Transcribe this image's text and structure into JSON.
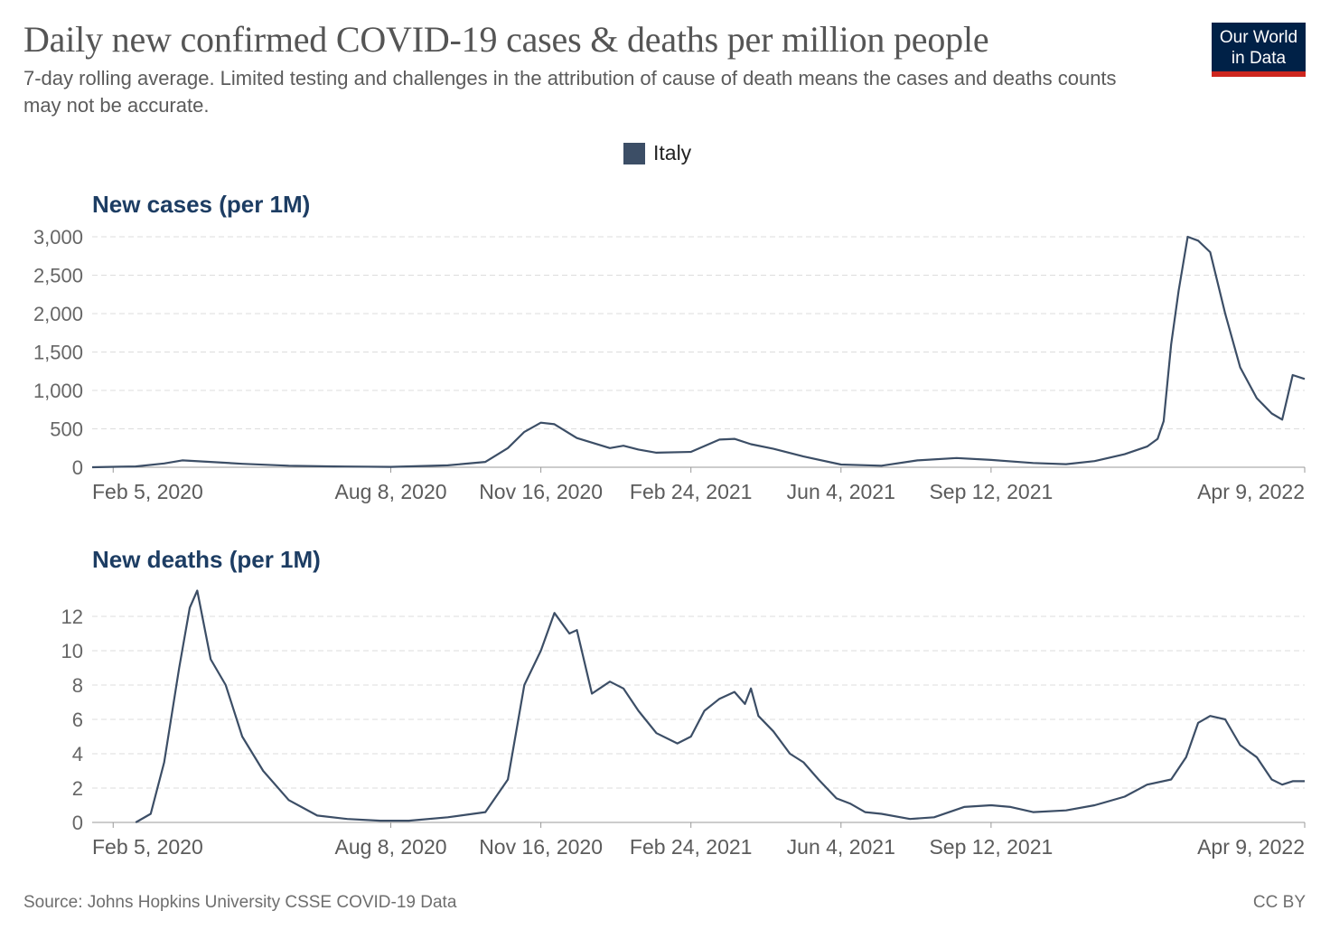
{
  "title": "Daily new confirmed COVID-19 cases & deaths per million people",
  "subtitle": "7-day rolling average. Limited testing and challenges in the attribution of cause of death means the cases and deaths counts may not be accurate.",
  "logo": {
    "line1": "Our World",
    "line2": "in Data",
    "bg_color": "#002147",
    "accent_color": "#ce261e"
  },
  "legend": {
    "label": "Italy",
    "color": "#3c4e66"
  },
  "footer": {
    "source": "Source: Johns Hopkins University CSSE COVID-19 Data",
    "license": "CC BY"
  },
  "chart_data": [
    {
      "type": "line",
      "title": "New cases (per 1M)",
      "ylim": [
        0,
        3000
      ],
      "yticks": [
        0,
        500,
        1000,
        1500,
        2000,
        2500,
        3000
      ],
      "ytick_labels": [
        "0",
        "500",
        "1,000",
        "1,500",
        "2,000",
        "2,500",
        "3,000"
      ],
      "xlim": [
        "2020-01-22",
        "2022-04-09"
      ],
      "xticks": [
        "2020-02-05",
        "2020-08-08",
        "2020-11-16",
        "2021-02-24",
        "2021-06-04",
        "2021-09-12",
        "2022-04-09"
      ],
      "xtick_labels": [
        "Feb 5, 2020",
        "Aug 8, 2020",
        "Nov 16, 2020",
        "Feb 24, 2021",
        "Jun 4, 2021",
        "Sep 12, 2021",
        "Apr 9, 2022"
      ],
      "grid": true,
      "series": [
        {
          "name": "Italy",
          "color": "#3c4e66",
          "x": [
            "2020-01-22",
            "2020-02-20",
            "2020-03-10",
            "2020-03-22",
            "2020-04-10",
            "2020-05-01",
            "2020-06-01",
            "2020-07-01",
            "2020-08-08",
            "2020-09-15",
            "2020-10-10",
            "2020-10-25",
            "2020-11-05",
            "2020-11-16",
            "2020-11-25",
            "2020-12-10",
            "2021-01-01",
            "2021-01-10",
            "2021-01-20",
            "2021-02-01",
            "2021-02-24",
            "2021-03-15",
            "2021-03-25",
            "2021-04-05",
            "2021-04-20",
            "2021-05-10",
            "2021-06-04",
            "2021-07-01",
            "2021-07-25",
            "2021-08-20",
            "2021-09-12",
            "2021-10-10",
            "2021-11-01",
            "2021-11-20",
            "2021-12-10",
            "2021-12-25",
            "2022-01-01",
            "2022-01-05",
            "2022-01-10",
            "2022-01-15",
            "2022-01-21",
            "2022-01-28",
            "2022-02-05",
            "2022-02-15",
            "2022-02-25",
            "2022-03-08",
            "2022-03-18",
            "2022-03-25",
            "2022-04-01",
            "2022-04-09"
          ],
          "y": [
            0,
            10,
            50,
            90,
            70,
            45,
            20,
            10,
            5,
            25,
            70,
            250,
            460,
            580,
            560,
            380,
            250,
            280,
            230,
            190,
            200,
            360,
            370,
            300,
            240,
            140,
            35,
            20,
            90,
            120,
            95,
            55,
            40,
            80,
            170,
            270,
            370,
            600,
            1600,
            2300,
            3000,
            2950,
            2800,
            2000,
            1300,
            900,
            700,
            620,
            1200,
            1150
          ]
        }
      ]
    },
    {
      "type": "line",
      "title": "New deaths (per 1M)",
      "ylim": [
        0,
        14
      ],
      "yticks": [
        0,
        2,
        4,
        6,
        8,
        10,
        12
      ],
      "ytick_labels": [
        "0",
        "2",
        "4",
        "6",
        "8",
        "10",
        "12"
      ],
      "xlim": [
        "2020-01-22",
        "2022-04-09"
      ],
      "xticks": [
        "2020-02-05",
        "2020-08-08",
        "2020-11-16",
        "2021-02-24",
        "2021-06-04",
        "2021-09-12",
        "2022-04-09"
      ],
      "xtick_labels": [
        "Feb 5, 2020",
        "Aug 8, 2020",
        "Nov 16, 2020",
        "Feb 24, 2021",
        "Jun 4, 2021",
        "Sep 12, 2021",
        "Apr 9, 2022"
      ],
      "grid": true,
      "series": [
        {
          "name": "Italy",
          "color": "#3c4e66",
          "x": [
            "2020-02-20",
            "2020-03-01",
            "2020-03-10",
            "2020-03-20",
            "2020-03-27",
            "2020-04-01",
            "2020-04-10",
            "2020-04-20",
            "2020-05-01",
            "2020-05-15",
            "2020-06-01",
            "2020-06-20",
            "2020-07-10",
            "2020-08-01",
            "2020-08-20",
            "2020-09-15",
            "2020-10-10",
            "2020-10-25",
            "2020-11-05",
            "2020-11-16",
            "2020-11-25",
            "2020-12-05",
            "2020-12-10",
            "2020-12-20",
            "2021-01-01",
            "2021-01-10",
            "2021-01-20",
            "2021-02-01",
            "2021-02-15",
            "2021-02-24",
            "2021-03-05",
            "2021-03-15",
            "2021-03-25",
            "2021-04-01",
            "2021-04-05",
            "2021-04-10",
            "2021-04-20",
            "2021-05-01",
            "2021-05-10",
            "2021-05-20",
            "2021-06-01",
            "2021-06-10",
            "2021-06-20",
            "2021-07-01",
            "2021-07-20",
            "2021-08-05",
            "2021-08-25",
            "2021-09-12",
            "2021-09-25",
            "2021-10-10",
            "2021-11-01",
            "2021-11-20",
            "2021-12-10",
            "2021-12-25",
            "2022-01-10",
            "2022-01-20",
            "2022-01-28",
            "2022-02-05",
            "2022-02-15",
            "2022-02-25",
            "2022-03-08",
            "2022-03-18",
            "2022-03-25",
            "2022-04-01",
            "2022-04-09"
          ],
          "y": [
            0,
            0.5,
            3.5,
            9,
            12.5,
            13.5,
            9.5,
            8,
            5,
            3,
            1.3,
            0.4,
            0.2,
            0.1,
            0.1,
            0.3,
            0.6,
            2.5,
            8,
            10,
            12.2,
            11,
            11.2,
            7.5,
            8.2,
            7.8,
            6.5,
            5.2,
            4.6,
            5,
            6.5,
            7.2,
            7.6,
            6.9,
            7.8,
            6.2,
            5.3,
            4,
            3.5,
            2.5,
            1.4,
            1.1,
            0.6,
            0.5,
            0.2,
            0.3,
            0.9,
            1,
            0.9,
            0.6,
            0.7,
            1,
            1.5,
            2.2,
            2.5,
            3.8,
            5.8,
            6.2,
            6,
            4.5,
            3.8,
            2.5,
            2.2,
            2.4,
            2.4
          ]
        }
      ]
    }
  ]
}
